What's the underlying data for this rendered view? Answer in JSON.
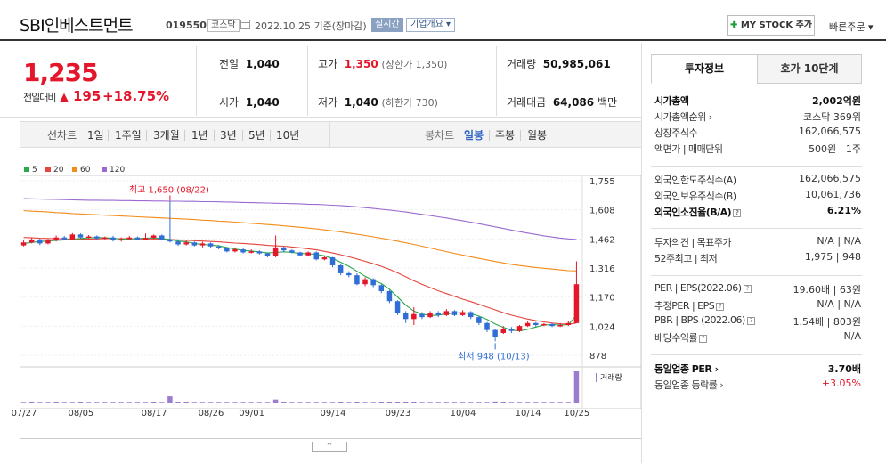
{
  "header": {
    "title": "SBI인베스트먼트",
    "code": "019550",
    "market": "코스닥",
    "date": "2022.10.25 기준(장마감)",
    "realtime": "실시간",
    "company_info": "기업개요",
    "mystock": "MY STOCK 추가",
    "quick_order": "빠른주문"
  },
  "price": {
    "current": "1,235",
    "change_label": "전일대비",
    "change_symbol": "▲",
    "change_value": "195",
    "change_pct": "+18.75%"
  },
  "stats": {
    "prev_label": "전일",
    "prev": "1,040",
    "open_label": "시가",
    "open": "1,040",
    "high_label": "고가",
    "high": "1,350",
    "high_sub": "(상한가 1,350)",
    "low_label": "저가",
    "low": "1,040",
    "low_sub": "(하한가 730)",
    "volume_label": "거래량",
    "volume": "50,985,061",
    "amount_label": "거래대금",
    "amount": "64,086",
    "amount_unit": "백만"
  },
  "period_bar": {
    "line_chart": "선차트",
    "periods": [
      "1일",
      "1주일",
      "3개월",
      "1년",
      "3년",
      "5년",
      "10년"
    ],
    "candle_chart": "봉차트",
    "candles": [
      "일봉",
      "주봉",
      "월봉"
    ],
    "active_candle": "일봉"
  },
  "chart_data": {
    "type": "candlestick",
    "ma_legend": [
      {
        "name": "5",
        "color": "#2aa84a"
      },
      {
        "name": "20",
        "color": "#e5453c"
      },
      {
        "name": "60",
        "color": "#f28c1a"
      },
      {
        "name": "120",
        "color": "#9b6ad1"
      }
    ],
    "y_ticks": [
      "1,755",
      "1,608",
      "1,462",
      "1,316",
      "1,170",
      "1,024",
      "878"
    ],
    "ylim": [
      878,
      1755
    ],
    "x_ticks": [
      "07/27",
      "08/05",
      "08/17",
      "08/26",
      "09/01",
      "09/14",
      "09/23",
      "10/04",
      "10/14",
      "10/25"
    ],
    "max_annotation": "최고 1,650 (08/22)",
    "min_annotation": "최저 948 (10/13)",
    "volume_label": "거래량",
    "candles": [
      {
        "o": 1430,
        "c": 1445,
        "h": 1455,
        "l": 1425
      },
      {
        "o": 1445,
        "c": 1460,
        "h": 1470,
        "l": 1440
      },
      {
        "o": 1455,
        "c": 1440,
        "h": 1465,
        "l": 1432
      },
      {
        "o": 1440,
        "c": 1455,
        "h": 1462,
        "l": 1435
      },
      {
        "o": 1455,
        "c": 1470,
        "h": 1480,
        "l": 1450
      },
      {
        "o": 1470,
        "c": 1460,
        "h": 1478,
        "l": 1455
      },
      {
        "o": 1460,
        "c": 1485,
        "h": 1492,
        "l": 1455
      },
      {
        "o": 1485,
        "c": 1470,
        "h": 1490,
        "l": 1465
      },
      {
        "o": 1470,
        "c": 1475,
        "h": 1482,
        "l": 1465
      },
      {
        "o": 1475,
        "c": 1465,
        "h": 1480,
        "l": 1460
      },
      {
        "o": 1465,
        "c": 1470,
        "h": 1475,
        "l": 1460
      },
      {
        "o": 1470,
        "c": 1455,
        "h": 1478,
        "l": 1450
      },
      {
        "o": 1455,
        "c": 1462,
        "h": 1470,
        "l": 1450
      },
      {
        "o": 1462,
        "c": 1470,
        "h": 1478,
        "l": 1455
      },
      {
        "o": 1470,
        "c": 1460,
        "h": 1475,
        "l": 1455
      },
      {
        "o": 1460,
        "c": 1468,
        "h": 1490,
        "l": 1455
      },
      {
        "o": 1468,
        "c": 1480,
        "h": 1485,
        "l": 1462
      },
      {
        "o": 1480,
        "c": 1460,
        "h": 1485,
        "l": 1455
      },
      {
        "o": 1460,
        "c": 1450,
        "h": 1650,
        "l": 1445
      },
      {
        "o": 1450,
        "c": 1435,
        "h": 1460,
        "l": 1428
      },
      {
        "o": 1435,
        "c": 1445,
        "h": 1455,
        "l": 1430
      },
      {
        "o": 1445,
        "c": 1430,
        "h": 1450,
        "l": 1425
      },
      {
        "o": 1430,
        "c": 1440,
        "h": 1448,
        "l": 1420
      },
      {
        "o": 1440,
        "c": 1425,
        "h": 1445,
        "l": 1418
      },
      {
        "o": 1425,
        "c": 1415,
        "h": 1432,
        "l": 1410
      },
      {
        "o": 1415,
        "c": 1400,
        "h": 1420,
        "l": 1395
      },
      {
        "o": 1400,
        "c": 1410,
        "h": 1420,
        "l": 1395
      },
      {
        "o": 1410,
        "c": 1395,
        "h": 1415,
        "l": 1390
      },
      {
        "o": 1395,
        "c": 1400,
        "h": 1410,
        "l": 1390
      },
      {
        "o": 1400,
        "c": 1390,
        "h": 1405,
        "l": 1385
      },
      {
        "o": 1390,
        "c": 1375,
        "h": 1395,
        "l": 1370
      },
      {
        "o": 1375,
        "c": 1420,
        "h": 1480,
        "l": 1370
      },
      {
        "o": 1420,
        "c": 1405,
        "h": 1425,
        "l": 1395
      },
      {
        "o": 1405,
        "c": 1395,
        "h": 1410,
        "l": 1390
      },
      {
        "o": 1395,
        "c": 1380,
        "h": 1398,
        "l": 1375
      },
      {
        "o": 1380,
        "c": 1395,
        "h": 1400,
        "l": 1375
      },
      {
        "o": 1395,
        "c": 1360,
        "h": 1400,
        "l": 1355
      },
      {
        "o": 1360,
        "c": 1370,
        "h": 1375,
        "l": 1355
      },
      {
        "o": 1370,
        "c": 1330,
        "h": 1372,
        "l": 1320
      },
      {
        "o": 1330,
        "c": 1290,
        "h": 1335,
        "l": 1280
      },
      {
        "o": 1290,
        "c": 1280,
        "h": 1300,
        "l": 1270
      },
      {
        "o": 1280,
        "c": 1235,
        "h": 1290,
        "l": 1230
      },
      {
        "o": 1235,
        "c": 1260,
        "h": 1270,
        "l": 1225
      },
      {
        "o": 1260,
        "c": 1230,
        "h": 1265,
        "l": 1220
      },
      {
        "o": 1230,
        "c": 1200,
        "h": 1235,
        "l": 1190
      },
      {
        "o": 1200,
        "c": 1150,
        "h": 1205,
        "l": 1140
      },
      {
        "o": 1150,
        "c": 1090,
        "h": 1155,
        "l": 1080
      },
      {
        "o": 1090,
        "c": 1060,
        "h": 1100,
        "l": 1040
      },
      {
        "o": 1060,
        "c": 1085,
        "h": 1120,
        "l": 1030
      },
      {
        "o": 1085,
        "c": 1070,
        "h": 1095,
        "l": 1060
      },
      {
        "o": 1070,
        "c": 1090,
        "h": 1100,
        "l": 1065
      },
      {
        "o": 1090,
        "c": 1080,
        "h": 1100,
        "l": 1070
      },
      {
        "o": 1080,
        "c": 1100,
        "h": 1110,
        "l": 1075
      },
      {
        "o": 1100,
        "c": 1080,
        "h": 1105,
        "l": 1075
      },
      {
        "o": 1080,
        "c": 1095,
        "h": 1105,
        "l": 1075
      },
      {
        "o": 1095,
        "c": 1070,
        "h": 1100,
        "l": 1060
      },
      {
        "o": 1070,
        "c": 1040,
        "h": 1075,
        "l": 1030
      },
      {
        "o": 1040,
        "c": 1005,
        "h": 1045,
        "l": 995
      },
      {
        "o": 1005,
        "c": 970,
        "h": 1010,
        "l": 948
      },
      {
        "o": 990,
        "c": 1010,
        "h": 1025,
        "l": 985
      },
      {
        "o": 1010,
        "c": 1000,
        "h": 1020,
        "l": 990
      },
      {
        "o": 1000,
        "c": 1025,
        "h": 1030,
        "l": 995
      },
      {
        "o": 1025,
        "c": 1040,
        "h": 1050,
        "l": 1020
      },
      {
        "o": 1040,
        "c": 1030,
        "h": 1045,
        "l": 1020
      },
      {
        "o": 1030,
        "c": 1035,
        "h": 1040,
        "l": 1025
      },
      {
        "o": 1035,
        "c": 1025,
        "h": 1040,
        "l": 1020
      },
      {
        "o": 1025,
        "c": 1030,
        "h": 1040,
        "l": 1020
      },
      {
        "o": 1030,
        "c": 1040,
        "h": 1050,
        "l": 1025
      },
      {
        "o": 1040,
        "c": 1235,
        "h": 1350,
        "l": 1040
      }
    ],
    "ma5": [
      1440,
      1445,
      1450,
      1452,
      1455,
      1458,
      1462,
      1465,
      1468,
      1470,
      1468,
      1466,
      1462,
      1462,
      1464,
      1466,
      1468,
      1464,
      1460,
      1452,
      1448,
      1440,
      1435,
      1432,
      1428,
      1420,
      1412,
      1405,
      1402,
      1398,
      1392,
      1395,
      1398,
      1395,
      1390,
      1388,
      1385,
      1378,
      1365,
      1345,
      1325,
      1300,
      1275,
      1255,
      1238,
      1210,
      1170,
      1130,
      1100,
      1085,
      1078,
      1080,
      1086,
      1090,
      1092,
      1088,
      1075,
      1058,
      1035,
      1018,
      1005,
      1000,
      1008,
      1020,
      1030,
      1032,
      1030,
      1032,
      1080
    ],
    "ma20": [
      1470,
      1468,
      1466,
      1465,
      1464,
      1463,
      1462,
      1462,
      1462,
      1463,
      1464,
      1464,
      1464,
      1464,
      1463,
      1463,
      1463,
      1462,
      1460,
      1458,
      1456,
      1454,
      1452,
      1450,
      1448,
      1445,
      1442,
      1440,
      1437,
      1434,
      1430,
      1428,
      1426,
      1422,
      1418,
      1413,
      1408,
      1400,
      1392,
      1383,
      1373,
      1362,
      1350,
      1338,
      1325,
      1310,
      1292,
      1272,
      1252,
      1234,
      1218,
      1202,
      1188,
      1174,
      1160,
      1148,
      1134,
      1120,
      1106,
      1092,
      1080,
      1070,
      1060,
      1052,
      1046,
      1040,
      1036,
      1034,
      1040
    ],
    "ma60": [
      1605,
      1602,
      1600,
      1598,
      1595,
      1593,
      1590,
      1588,
      1586,
      1584,
      1582,
      1580,
      1578,
      1576,
      1574,
      1572,
      1570,
      1568,
      1566,
      1564,
      1562,
      1560,
      1557,
      1555,
      1552,
      1550,
      1547,
      1544,
      1541,
      1538,
      1535,
      1532,
      1528,
      1525,
      1521,
      1517,
      1513,
      1508,
      1503,
      1498,
      1492,
      1486,
      1480,
      1473,
      1466,
      1459,
      1451,
      1443,
      1435,
      1426,
      1417,
      1408,
      1399,
      1390,
      1382,
      1373,
      1365,
      1357,
      1349,
      1342,
      1335,
      1329,
      1324,
      1319,
      1315,
      1311,
      1307,
      1303,
      1302
    ],
    "ma120": [
      1665,
      1664,
      1663,
      1662,
      1661,
      1660,
      1659,
      1658,
      1657,
      1657,
      1656,
      1656,
      1655,
      1655,
      1654,
      1654,
      1653,
      1653,
      1652,
      1652,
      1651,
      1651,
      1650,
      1650,
      1649,
      1648,
      1647,
      1646,
      1645,
      1644,
      1643,
      1642,
      1641,
      1640,
      1639,
      1637,
      1636,
      1634,
      1632,
      1630,
      1627,
      1624,
      1620,
      1616,
      1612,
      1608,
      1603,
      1598,
      1592,
      1586,
      1580,
      1574,
      1568,
      1561,
      1554,
      1547,
      1539,
      1531,
      1523,
      1515,
      1507,
      1499,
      1492,
      1485,
      1478,
      1472,
      1467,
      1463,
      1460
    ],
    "volume": [
      2,
      3,
      2,
      2,
      3,
      2,
      2,
      3,
      2,
      2,
      2,
      2,
      2,
      2,
      2,
      2,
      3,
      2,
      22,
      4,
      3,
      2,
      2,
      2,
      2,
      2,
      2,
      2,
      2,
      2,
      2,
      12,
      3,
      2,
      2,
      2,
      2,
      2,
      2,
      3,
      2,
      3,
      2,
      2,
      3,
      3,
      4,
      3,
      3,
      2,
      2,
      2,
      2,
      2,
      2,
      2,
      2,
      2,
      6,
      3,
      2,
      2,
      2,
      2,
      2,
      2,
      2,
      2,
      100
    ]
  },
  "right_panel": {
    "tab_info": "투자정보",
    "tab_orderbook": "호가 10단계",
    "group1": [
      {
        "k": "시가총액",
        "v": "2,002억원",
        "bold": true
      },
      {
        "k": "시가총액순위 ›",
        "v": "코스닥 369위"
      },
      {
        "k": "상장주식수",
        "v": "162,066,575"
      },
      {
        "k": "액면가 | 매매단위",
        "v": "500원 | 1주"
      }
    ],
    "group2": [
      {
        "k": "외국인한도주식수(A)",
        "v": "162,066,575"
      },
      {
        "k": "외국인보유주식수(B)",
        "v": "10,061,736"
      },
      {
        "k": "외국인소진율(B/A)",
        "v": "6.21%",
        "bold": true
      }
    ],
    "group3": [
      {
        "k": "투자의견 | 목표주가",
        "v": "N/A | N/A"
      },
      {
        "k": "52주최고 | 최저",
        "v": "1,975 | 948"
      }
    ],
    "group4": [
      {
        "k": "PER | EPS(2022.06)",
        "v": "19.60배 | 63원"
      },
      {
        "k": "추정PER | EPS",
        "v": "N/A | N/A"
      },
      {
        "k": "PBR | BPS (2022.06)",
        "v": "1.54배 | 803원"
      },
      {
        "k": "배당수익률",
        "v": "N/A"
      }
    ],
    "group5": [
      {
        "k": "동일업종 PER ›",
        "v": "3.70배",
        "bold": true
      },
      {
        "k": "동일업종 등락률 ›",
        "v": "+3.05%",
        "red": true
      }
    ]
  }
}
